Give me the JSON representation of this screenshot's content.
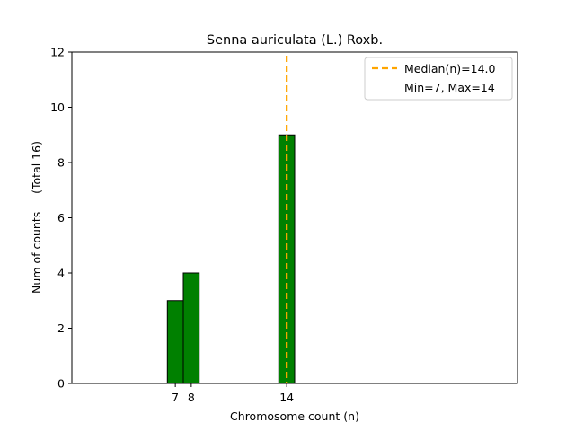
{
  "chart_data": {
    "type": "bar",
    "title": "Senna auriculata (L.) Roxb.",
    "xlabel": "Chromosome count (n)",
    "ylabel": "Num of counts     (Total 16)",
    "x": [
      7,
      8,
      14
    ],
    "values": [
      3,
      4,
      9
    ],
    "xlim": [
      0.5,
      28.5
    ],
    "ylim": [
      0,
      12
    ],
    "yticks": [
      0,
      2,
      4,
      6,
      8,
      10,
      12
    ],
    "xticks": [
      7,
      8,
      14
    ],
    "bar_color": "#008000",
    "bar_edge_color": "#000000",
    "median": 14.0,
    "median_color": "#ffa500",
    "legend_position": "top-right",
    "legend": [
      {
        "label": "Median(n)=14.0",
        "style": "dashed-line"
      },
      {
        "label": "Min=7, Max=14",
        "style": "none"
      }
    ]
  }
}
